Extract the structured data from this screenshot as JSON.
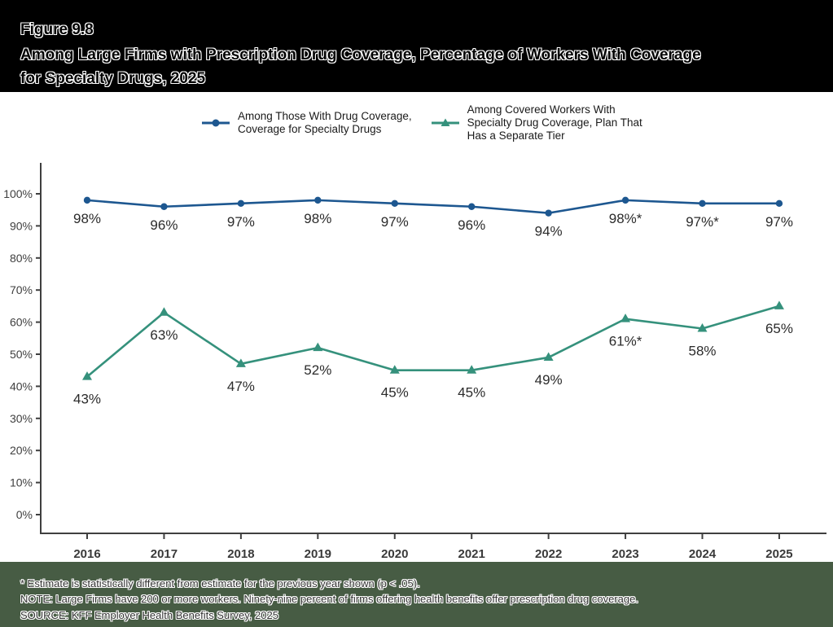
{
  "header": {
    "figure_label": "Figure 9.8",
    "title": "Among Large Firms with Prescription Drug Coverage, Percentage of Workers With Coverage\nfor Specialty Drugs, 2025"
  },
  "legend": {
    "items": [
      {
        "label": "Among Those With Drug Coverage,\nCoverage for Specialty Drugs"
      },
      {
        "label": "Among Covered Workers With\nSpecialty Drug Coverage, Plan That\nHas a Separate Tier"
      }
    ]
  },
  "chart_data": {
    "type": "line",
    "title": "Among Large Firms with Prescription Drug Coverage, Percentage of Workers With Coverage for Specialty Drugs, 2025",
    "x": [
      2016,
      2017,
      2018,
      2019,
      2020,
      2021,
      2022,
      2023,
      2024,
      2025
    ],
    "series": [
      {
        "name": "Among Those With Drug Coverage, Coverage for Specialty Drugs",
        "color": "#1d5790",
        "marker": "circle",
        "values": [
          98,
          96,
          97,
          98,
          97,
          96,
          94,
          98,
          97,
          97
        ],
        "labels": [
          "98%",
          "96%",
          "97%",
          "98%",
          "97%",
          "96%",
          "94%",
          "98%*",
          "97%*",
          "97%"
        ]
      },
      {
        "name": "Among Covered Workers With Specialty Drug Coverage, Plan That Has a Separate Tier",
        "color": "#35917c",
        "marker": "triangle-up",
        "values": [
          43,
          63,
          47,
          52,
          45,
          45,
          49,
          61,
          58,
          65
        ],
        "labels": [
          "43%",
          "63%",
          "47%",
          "52%",
          "45%",
          "45%",
          "49%",
          "61%*",
          "58%",
          "65%"
        ]
      }
    ],
    "ylim": [
      0,
      100
    ],
    "y_ticks": [
      "0%",
      "10%",
      "20%",
      "30%",
      "40%",
      "50%",
      "60%",
      "70%",
      "80%",
      "90%",
      "100%"
    ],
    "grid": false,
    "legend_position": "top"
  },
  "footnotes": {
    "significance": "* Estimate is statistically different from estimate for the previous year shown (p < .05).",
    "note": "NOTE: Large Firms have 200 or more workers. Ninety-nine percent of firms offering health benefits offer prescription drug coverage.",
    "source": "SOURCE: KFF Employer Health Benefits Survey, 2025"
  },
  "colors": {
    "axis": "#3f3f3f",
    "page_background": "#000000",
    "panel_background": "#ffffff",
    "footer_background": "#475c44"
  }
}
